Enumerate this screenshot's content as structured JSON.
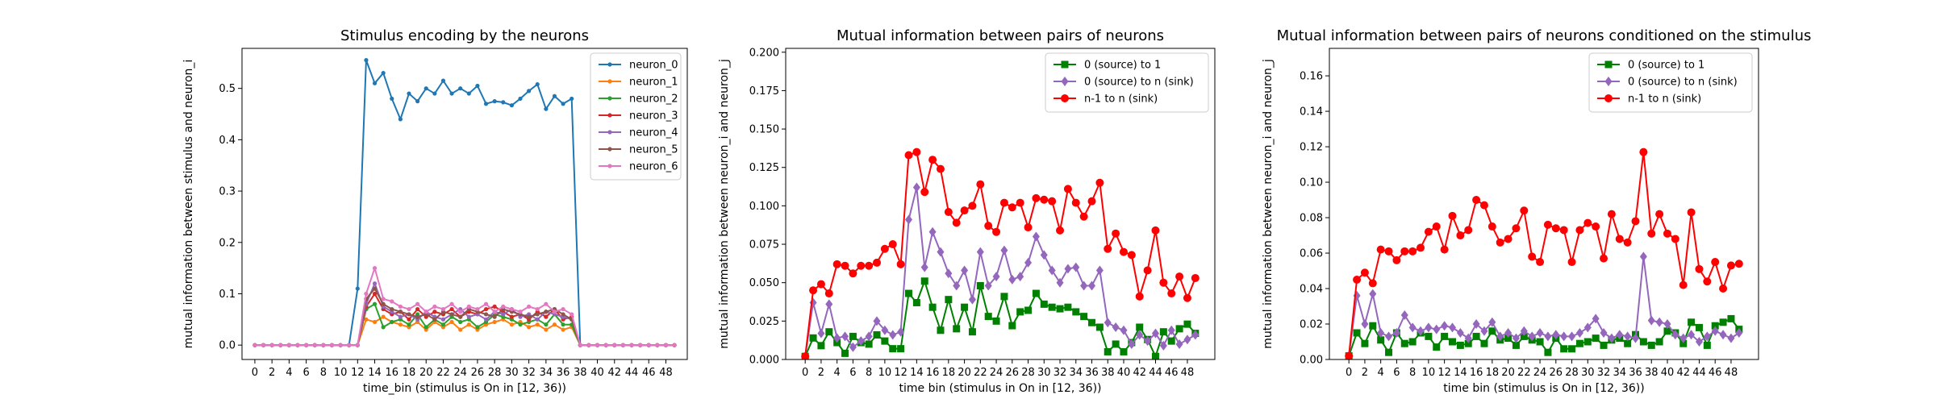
{
  "chart_data": [
    {
      "type": "line",
      "title": "Stimulus encoding by the neurons",
      "xlabel": "time_bin (stimulus is On in [12, 36))",
      "ylabel": "mutual information between stimulus and neuron_i",
      "xlim": [
        -1.5,
        50.5
      ],
      "ylim": [
        -0.028,
        0.578
      ],
      "xticks": [
        0,
        2,
        4,
        6,
        8,
        10,
        12,
        14,
        16,
        18,
        20,
        22,
        24,
        26,
        28,
        30,
        32,
        34,
        36,
        38,
        40,
        42,
        44,
        46,
        48
      ],
      "yticks": [
        0.0,
        0.1,
        0.2,
        0.3,
        0.4,
        0.5
      ],
      "ytick_decimals": 1,
      "legend_position": "top-right",
      "x": [
        0,
        1,
        2,
        3,
        4,
        5,
        6,
        7,
        8,
        9,
        10,
        11,
        12,
        13,
        14,
        15,
        16,
        17,
        18,
        19,
        20,
        21,
        22,
        23,
        24,
        25,
        26,
        27,
        28,
        29,
        30,
        31,
        32,
        33,
        34,
        35,
        36,
        37,
        38,
        39,
        40,
        41,
        42,
        43,
        44,
        45,
        46,
        47,
        48,
        49
      ],
      "series": [
        {
          "name": "neuron_0",
          "color": "#1f77b4",
          "marker": "dot",
          "values": [
            0,
            0,
            0,
            0,
            0,
            0,
            0,
            0,
            0,
            0,
            0,
            0,
            0.11,
            0.555,
            0.51,
            0.53,
            0.48,
            0.44,
            0.49,
            0.475,
            0.5,
            0.49,
            0.515,
            0.49,
            0.5,
            0.49,
            0.505,
            0.47,
            0.475,
            0.473,
            0.467,
            0.48,
            0.495,
            0.508,
            0.46,
            0.485,
            0.47,
            0.48,
            0,
            0,
            0,
            0,
            0,
            0,
            0,
            0,
            0,
            0,
            0,
            0
          ]
        },
        {
          "name": "neuron_1",
          "color": "#ff7f0e",
          "marker": "dot",
          "values": [
            0,
            0,
            0,
            0,
            0,
            0,
            0,
            0,
            0,
            0,
            0,
            0,
            0,
            0.05,
            0.045,
            0.055,
            0.045,
            0.04,
            0.035,
            0.045,
            0.03,
            0.045,
            0.035,
            0.045,
            0.03,
            0.04,
            0.03,
            0.04,
            0.045,
            0.05,
            0.04,
            0.045,
            0.035,
            0.04,
            0.03,
            0.04,
            0.03,
            0.035,
            0,
            0,
            0,
            0,
            0,
            0,
            0,
            0,
            0,
            0,
            0,
            0
          ]
        },
        {
          "name": "neuron_2",
          "color": "#2ca02c",
          "marker": "dot",
          "values": [
            0,
            0,
            0,
            0,
            0,
            0,
            0,
            0,
            0,
            0,
            0,
            0,
            0,
            0.07,
            0.08,
            0.035,
            0.045,
            0.05,
            0.04,
            0.06,
            0.035,
            0.05,
            0.04,
            0.055,
            0.045,
            0.05,
            0.035,
            0.045,
            0.06,
            0.055,
            0.05,
            0.04,
            0.045,
            0.05,
            0.04,
            0.06,
            0.04,
            0.04,
            0,
            0,
            0,
            0,
            0,
            0,
            0,
            0,
            0,
            0,
            0,
            0
          ]
        },
        {
          "name": "neuron_3",
          "color": "#d62728",
          "marker": "dot",
          "values": [
            0,
            0,
            0,
            0,
            0,
            0,
            0,
            0,
            0,
            0,
            0,
            0,
            0,
            0.075,
            0.1,
            0.07,
            0.06,
            0.065,
            0.05,
            0.07,
            0.055,
            0.065,
            0.06,
            0.07,
            0.055,
            0.065,
            0.06,
            0.07,
            0.075,
            0.065,
            0.055,
            0.06,
            0.05,
            0.065,
            0.055,
            0.07,
            0.05,
            0.055,
            0,
            0,
            0,
            0,
            0,
            0,
            0,
            0,
            0,
            0,
            0,
            0
          ]
        },
        {
          "name": "neuron_4",
          "color": "#9467bd",
          "marker": "dot",
          "values": [
            0,
            0,
            0,
            0,
            0,
            0,
            0,
            0,
            0,
            0,
            0,
            0,
            0,
            0.08,
            0.12,
            0.075,
            0.065,
            0.055,
            0.06,
            0.05,
            0.065,
            0.055,
            0.05,
            0.06,
            0.07,
            0.055,
            0.06,
            0.05,
            0.065,
            0.06,
            0.07,
            0.055,
            0.06,
            0.05,
            0.065,
            0.06,
            0.055,
            0.05,
            0,
            0,
            0,
            0,
            0,
            0,
            0,
            0,
            0,
            0,
            0,
            0
          ]
        },
        {
          "name": "neuron_5",
          "color": "#8c564b",
          "marker": "dot",
          "values": [
            0,
            0,
            0,
            0,
            0,
            0,
            0,
            0,
            0,
            0,
            0,
            0,
            0,
            0.09,
            0.11,
            0.08,
            0.07,
            0.065,
            0.06,
            0.055,
            0.06,
            0.05,
            0.065,
            0.06,
            0.055,
            0.07,
            0.065,
            0.06,
            0.055,
            0.07,
            0.065,
            0.06,
            0.055,
            0.06,
            0.065,
            0.07,
            0.06,
            0.05,
            0,
            0,
            0,
            0,
            0,
            0,
            0,
            0,
            0,
            0,
            0,
            0
          ]
        },
        {
          "name": "neuron_6",
          "color": "#e377c2",
          "marker": "dot",
          "values": [
            0,
            0,
            0,
            0,
            0,
            0,
            0,
            0,
            0,
            0,
            0,
            0,
            0,
            0.1,
            0.15,
            0.09,
            0.085,
            0.075,
            0.07,
            0.08,
            0.065,
            0.075,
            0.07,
            0.08,
            0.065,
            0.075,
            0.07,
            0.08,
            0.065,
            0.075,
            0.07,
            0.065,
            0.075,
            0.07,
            0.08,
            0.065,
            0.07,
            0.06,
            0,
            0,
            0,
            0,
            0,
            0,
            0,
            0,
            0,
            0,
            0,
            0
          ]
        }
      ]
    },
    {
      "type": "line",
      "title": "Mutual information between pairs of neurons",
      "xlabel": "time bin (stimulus in On in [12, 36))",
      "ylabel": "mutual information between neuron_i and neuron_j",
      "xlim": [
        -2.45,
        51.45
      ],
      "ylim": [
        0,
        0.2025
      ],
      "xticks": [
        0,
        2,
        4,
        6,
        8,
        10,
        12,
        14,
        16,
        18,
        20,
        22,
        24,
        26,
        28,
        30,
        32,
        34,
        36,
        38,
        40,
        42,
        44,
        46,
        48
      ],
      "yticks": [
        0.0,
        0.025,
        0.05,
        0.075,
        0.1,
        0.125,
        0.15,
        0.175,
        0.2
      ],
      "ytick_decimals": 3,
      "legend_position": "top-right",
      "x": [
        0,
        1,
        2,
        3,
        4,
        5,
        6,
        7,
        8,
        9,
        10,
        11,
        12,
        13,
        14,
        15,
        16,
        17,
        18,
        19,
        20,
        21,
        22,
        23,
        24,
        25,
        26,
        27,
        28,
        29,
        30,
        31,
        32,
        33,
        34,
        35,
        36,
        37,
        38,
        39,
        40,
        41,
        42,
        43,
        44,
        45,
        46,
        47,
        48,
        49
      ],
      "series": [
        {
          "name": "0 (source) to 1",
          "color": "#008000",
          "marker": "square",
          "values": [
            0.002,
            0.014,
            0.009,
            0.018,
            0.011,
            0.004,
            0.015,
            0.011,
            0.01,
            0.016,
            0.012,
            0.007,
            0.007,
            0.043,
            0.037,
            0.051,
            0.034,
            0.019,
            0.039,
            0.02,
            0.034,
            0.018,
            0.048,
            0.028,
            0.025,
            0.041,
            0.022,
            0.031,
            0.032,
            0.043,
            0.036,
            0.034,
            0.033,
            0.034,
            0.031,
            0.028,
            0.024,
            0.021,
            0.005,
            0.01,
            0.005,
            0.011,
            0.021,
            0.013,
            0.002,
            0.018,
            0.012,
            0.02,
            0.023,
            0.017
          ]
        },
        {
          "name": "0 (source) to n (sink)",
          "color": "#9467bd",
          "marker": "diamond",
          "values": [
            0.002,
            0.037,
            0.017,
            0.036,
            0.014,
            0.015,
            0.008,
            0.012,
            0.015,
            0.025,
            0.019,
            0.016,
            0.018,
            0.091,
            0.112,
            0.06,
            0.083,
            0.07,
            0.056,
            0.048,
            0.058,
            0.039,
            0.07,
            0.048,
            0.054,
            0.071,
            0.052,
            0.054,
            0.063,
            0.08,
            0.068,
            0.058,
            0.05,
            0.059,
            0.06,
            0.048,
            0.048,
            0.058,
            0.024,
            0.021,
            0.019,
            0.01,
            0.016,
            0.012,
            0.017,
            0.009,
            0.019,
            0.01,
            0.013,
            0.016
          ]
        },
        {
          "name": "n-1 to n (sink)",
          "color": "#ff0000",
          "marker": "circle",
          "values": [
            0.002,
            0.045,
            0.049,
            0.043,
            0.062,
            0.061,
            0.056,
            0.061,
            0.061,
            0.063,
            0.072,
            0.075,
            0.062,
            0.133,
            0.135,
            0.109,
            0.13,
            0.124,
            0.096,
            0.089,
            0.097,
            0.1,
            0.114,
            0.087,
            0.083,
            0.102,
            0.099,
            0.102,
            0.086,
            0.105,
            0.104,
            0.103,
            0.084,
            0.111,
            0.102,
            0.093,
            0.103,
            0.115,
            0.072,
            0.082,
            0.07,
            0.068,
            0.041,
            0.058,
            0.084,
            0.05,
            0.043,
            0.054,
            0.04,
            0.053
          ]
        }
      ]
    },
    {
      "type": "line",
      "title": "Mutual information between pairs of neurons conditioned on the stimulus",
      "xlabel": "time bin (stimulus is On in [12, 36))",
      "ylabel": "mutual information between neuron_i and neuron_j",
      "xlim": [
        -2.45,
        51.45
      ],
      "ylim": [
        0,
        0.1755
      ],
      "xticks": [
        0,
        2,
        4,
        6,
        8,
        10,
        12,
        14,
        16,
        18,
        20,
        22,
        24,
        26,
        28,
        30,
        32,
        34,
        36,
        38,
        40,
        42,
        44,
        46,
        48
      ],
      "yticks": [
        0.0,
        0.02,
        0.04,
        0.06,
        0.08,
        0.1,
        0.12,
        0.14,
        0.16
      ],
      "ytick_decimals": 2,
      "legend_position": "top-right",
      "x": [
        0,
        1,
        2,
        3,
        4,
        5,
        6,
        7,
        8,
        9,
        10,
        11,
        12,
        13,
        14,
        15,
        16,
        17,
        18,
        19,
        20,
        21,
        22,
        23,
        24,
        25,
        26,
        27,
        28,
        29,
        30,
        31,
        32,
        33,
        34,
        35,
        36,
        37,
        38,
        39,
        40,
        41,
        42,
        43,
        44,
        45,
        46,
        47,
        48,
        49
      ],
      "series": [
        {
          "name": "0 (source) to 1",
          "color": "#008000",
          "marker": "square",
          "values": [
            0.002,
            0.015,
            0.009,
            0.019,
            0.011,
            0.004,
            0.015,
            0.009,
            0.01,
            0.015,
            0.013,
            0.007,
            0.013,
            0.01,
            0.008,
            0.009,
            0.013,
            0.009,
            0.016,
            0.011,
            0.012,
            0.008,
            0.013,
            0.011,
            0.01,
            0.004,
            0.012,
            0.006,
            0.006,
            0.009,
            0.01,
            0.012,
            0.008,
            0.011,
            0.012,
            0.009,
            0.014,
            0.01,
            0.008,
            0.01,
            0.016,
            0.015,
            0.009,
            0.021,
            0.018,
            0.008,
            0.019,
            0.021,
            0.023,
            0.017
          ]
        },
        {
          "name": "0 (source) to n (sink)",
          "color": "#9467bd",
          "marker": "diamond",
          "values": [
            0.002,
            0.036,
            0.02,
            0.037,
            0.015,
            0.013,
            0.015,
            0.025,
            0.018,
            0.016,
            0.018,
            0.017,
            0.019,
            0.018,
            0.015,
            0.012,
            0.02,
            0.016,
            0.021,
            0.013,
            0.015,
            0.012,
            0.016,
            0.013,
            0.015,
            0.013,
            0.014,
            0.013,
            0.013,
            0.015,
            0.018,
            0.023,
            0.015,
            0.012,
            0.014,
            0.013,
            0.012,
            0.058,
            0.022,
            0.021,
            0.02,
            0.014,
            0.012,
            0.014,
            0.01,
            0.013,
            0.016,
            0.014,
            0.012,
            0.015
          ]
        },
        {
          "name": "n-1 to n (sink)",
          "color": "#ff0000",
          "marker": "circle",
          "values": [
            0.002,
            0.045,
            0.049,
            0.043,
            0.062,
            0.061,
            0.056,
            0.061,
            0.061,
            0.063,
            0.072,
            0.075,
            0.062,
            0.081,
            0.07,
            0.073,
            0.09,
            0.087,
            0.075,
            0.066,
            0.068,
            0.074,
            0.084,
            0.058,
            0.055,
            0.076,
            0.074,
            0.073,
            0.055,
            0.073,
            0.077,
            0.075,
            0.057,
            0.082,
            0.068,
            0.066,
            0.078,
            0.117,
            0.071,
            0.082,
            0.071,
            0.068,
            0.042,
            0.083,
            0.051,
            0.044,
            0.055,
            0.04,
            0.053,
            0.054
          ]
        }
      ]
    }
  ]
}
